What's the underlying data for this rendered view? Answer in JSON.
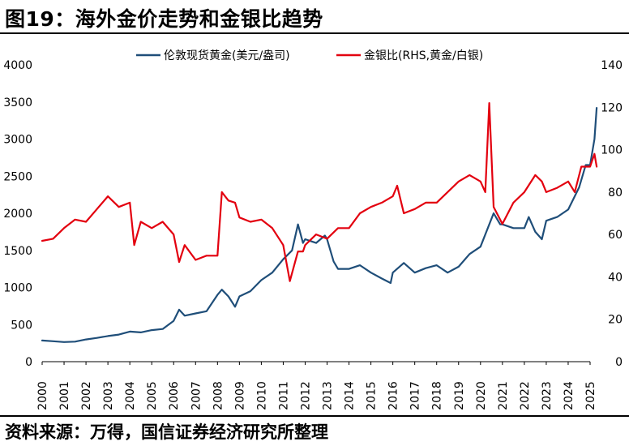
{
  "title": "图19：海外金价走势和金银比趋势",
  "source": "资料来源：万得，国信证券经济研究所整理",
  "chart_data": {
    "type": "line",
    "title": "图19：海外金价走势和金银比趋势",
    "xlim": [
      2000,
      2025
    ],
    "x_ticks": [
      "2000",
      "2001",
      "2002",
      "2003",
      "2004",
      "2005",
      "2006",
      "2007",
      "2008",
      "2009",
      "2010",
      "2011",
      "2012",
      "2013",
      "2014",
      "2015",
      "2016",
      "2017",
      "2018",
      "2019",
      "2020",
      "2021",
      "2022",
      "2023",
      "2024",
      "2025"
    ],
    "y_left": {
      "lim": [
        0,
        4000
      ],
      "ticks": [
        "0",
        "500",
        "1000",
        "1500",
        "2000",
        "2500",
        "3000",
        "3500",
        "4000"
      ]
    },
    "y_right": {
      "lim": [
        0,
        140
      ],
      "ticks": [
        "0",
        "20",
        "40",
        "60",
        "80",
        "100",
        "120",
        "140"
      ]
    },
    "legend_position": "top",
    "series": [
      {
        "name": "伦敦现货黄金(美元/盎司)",
        "axis": "left",
        "color": "#1f4e79",
        "x": [
          2000,
          2000.5,
          2001,
          2001.5,
          2002,
          2002.5,
          2003,
          2003.5,
          2004,
          2004.5,
          2005,
          2005.5,
          2006,
          2006.25,
          2006.5,
          2007,
          2007.5,
          2008,
          2008.2,
          2008.5,
          2008.8,
          2009,
          2009.5,
          2010,
          2010.5,
          2011,
          2011.4,
          2011.67,
          2011.9,
          2012,
          2012.5,
          2012.9,
          2013,
          2013.3,
          2013.5,
          2014,
          2014.5,
          2015,
          2015.5,
          2015.9,
          2016,
          2016.5,
          2017,
          2017.5,
          2018,
          2018.5,
          2019,
          2019.5,
          2020,
          2020.6,
          2020.9,
          2021,
          2021.5,
          2022,
          2022.2,
          2022.5,
          2022.8,
          2023,
          2023.5,
          2024,
          2024.5,
          2024.8,
          2025,
          2025.2,
          2025.3
        ],
        "y": [
          285,
          275,
          265,
          270,
          300,
          320,
          345,
          365,
          405,
          395,
          425,
          440,
          550,
          700,
          620,
          650,
          680,
          900,
          970,
          880,
          740,
          880,
          950,
          1100,
          1200,
          1380,
          1500,
          1850,
          1600,
          1650,
          1600,
          1700,
          1650,
          1350,
          1250,
          1250,
          1300,
          1200,
          1120,
          1060,
          1200,
          1330,
          1200,
          1260,
          1300,
          1200,
          1280,
          1450,
          1550,
          2000,
          1850,
          1850,
          1800,
          1800,
          1950,
          1750,
          1650,
          1900,
          1950,
          2050,
          2350,
          2650,
          2650,
          3000,
          3420
        ]
      },
      {
        "name": "金银比(RHS,黄金/白银)",
        "axis": "right",
        "color": "#e3000f",
        "x": [
          2000,
          2000.5,
          2001,
          2001.5,
          2002,
          2002.5,
          2003,
          2003.5,
          2004,
          2004.2,
          2004.5,
          2005,
          2005.5,
          2006,
          2006.25,
          2006.5,
          2007,
          2007.5,
          2008,
          2008.2,
          2008.5,
          2008.8,
          2009,
          2009.5,
          2010,
          2010.5,
          2011,
          2011.3,
          2011.67,
          2011.9,
          2012,
          2012.5,
          2013,
          2013.5,
          2014,
          2014.5,
          2015,
          2015.5,
          2016,
          2016.2,
          2016.5,
          2017,
          2017.5,
          2018,
          2018.5,
          2019,
          2019.5,
          2020,
          2020.22,
          2020.4,
          2020.6,
          2021,
          2021.5,
          2022,
          2022.5,
          2022.8,
          2023,
          2023.5,
          2024,
          2024.3,
          2024.6,
          2025,
          2025.2,
          2025.3
        ],
        "y": [
          57,
          58,
          63,
          67,
          66,
          72,
          78,
          73,
          75,
          55,
          66,
          63,
          66,
          60,
          47,
          55,
          48,
          50,
          50,
          80,
          76,
          75,
          68,
          66,
          67,
          63,
          55,
          38,
          52,
          52,
          55,
          60,
          58,
          63,
          63,
          70,
          73,
          75,
          78,
          83,
          70,
          72,
          75,
          75,
          80,
          85,
          88,
          85,
          80,
          122,
          73,
          65,
          75,
          80,
          88,
          85,
          80,
          82,
          85,
          80,
          92,
          92,
          98,
          92
        ]
      }
    ]
  }
}
